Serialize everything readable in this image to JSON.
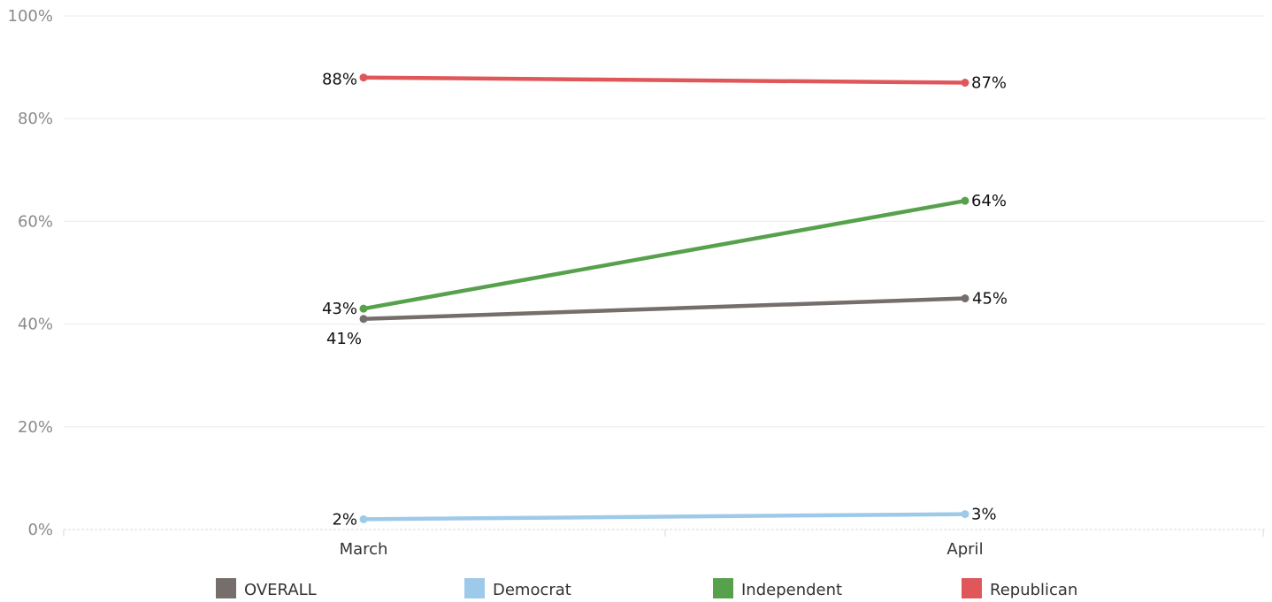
{
  "chart_data": {
    "type": "line",
    "title": "",
    "xlabel": "",
    "ylabel": "",
    "categories": [
      "March",
      "April"
    ],
    "y_ticks": [
      "0%",
      "20%",
      "40%",
      "60%",
      "80%",
      "100%"
    ],
    "ylim": [
      0,
      100
    ],
    "grid": true,
    "legend_position": "bottom",
    "series": [
      {
        "name": "OVERALL",
        "color": "#766e6b",
        "values": [
          41,
          45
        ],
        "labels": [
          "41%",
          "45%"
        ]
      },
      {
        "name": "Democrat",
        "color": "#9ecae9",
        "values": [
          2,
          3
        ],
        "labels": [
          "2%",
          "3%"
        ]
      },
      {
        "name": "Independent",
        "color": "#57a14d",
        "values": [
          43,
          64
        ],
        "labels": [
          "43%",
          "64%"
        ]
      },
      {
        "name": "Republican",
        "color": "#e05759",
        "values": [
          88,
          87
        ],
        "labels": [
          "88%",
          "87%"
        ]
      }
    ]
  }
}
